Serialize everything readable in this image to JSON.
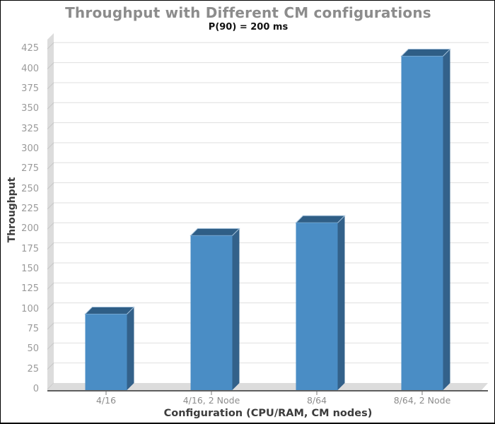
{
  "chart": {
    "title": "Throughput with Different CM configurations",
    "subtitle": "P(90) = 200 ms",
    "xlabel": "Configuration (CPU/RAM, CM nodes)",
    "ylabel": "Throughput"
  },
  "chart_data": {
    "type": "bar",
    "style": "pseudo-3d-bar",
    "title": "Throughput with Different CM configurations",
    "subtitle": "P(90) = 200 ms",
    "xlabel": "Configuration (CPU/RAM, CM nodes)",
    "ylabel": "Throughput",
    "categories": [
      "4/16",
      "4/16, 2 Node",
      "8/64",
      "8/64, 2 Node"
    ],
    "values": [
      94,
      192,
      208,
      416
    ],
    "ylim": [
      0,
      440
    ],
    "yticks": [
      0,
      25,
      50,
      75,
      100,
      125,
      150,
      175,
      200,
      225,
      250,
      275,
      300,
      325,
      350,
      375,
      400,
      425
    ],
    "grid": true,
    "legend": false,
    "colors": {
      "bar_front": "#4a8dc5",
      "bar_side": "#33618a",
      "bar_top": "#2f5e86",
      "bar_edge_highlight": "#a5c2dc",
      "wall": "#dcdcdc",
      "hatch": "#c6c6c6",
      "gridline": "#dfdfdf",
      "axis_line": "#5f5f5f",
      "tick_label": "#9a9a9a",
      "category_label": "#8c8c8c",
      "axis_title": "#3c3c3c",
      "title_color": "#8c8c8c",
      "subtitle_color": "#111111",
      "background": "#ffffff"
    }
  }
}
